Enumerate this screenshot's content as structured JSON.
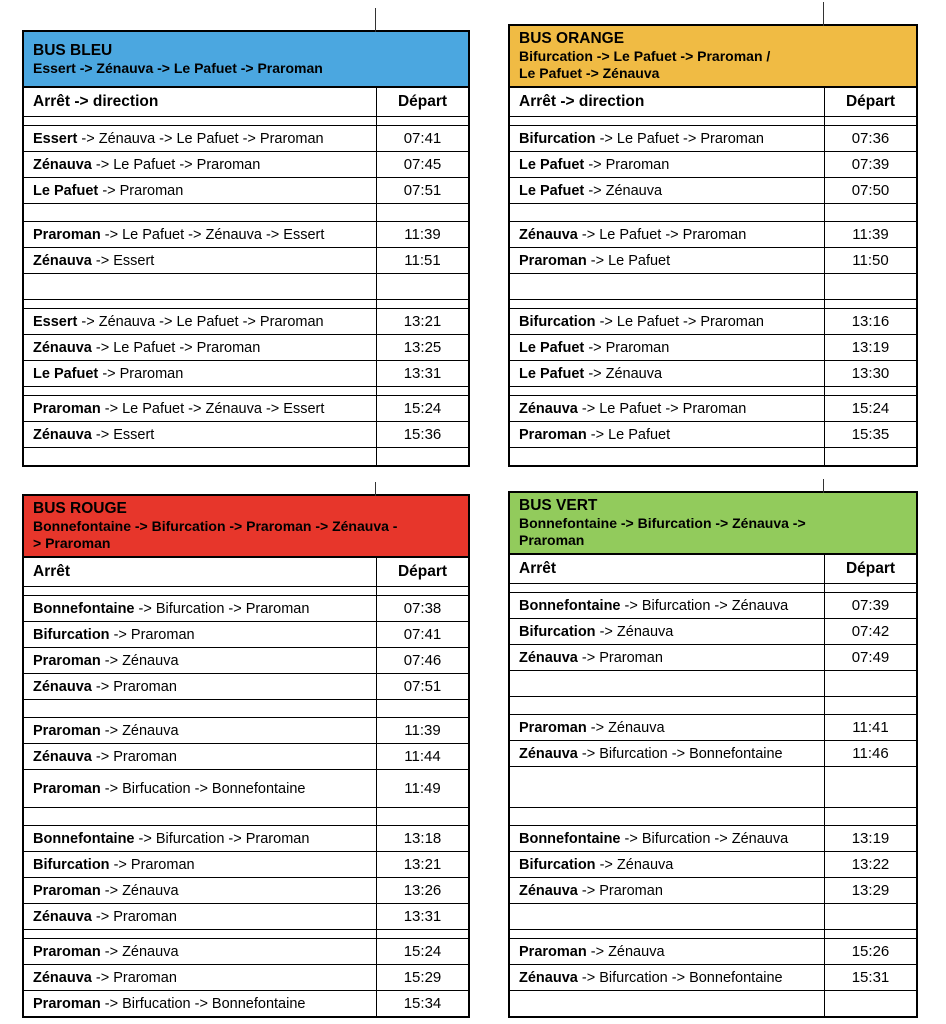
{
  "page": {
    "background": "#ffffff",
    "grid_line_color": "#333333"
  },
  "tables": [
    {
      "id": "bleu",
      "title": "BUS BLEU",
      "subtitle_lines": [
        "Essert -> Zénauva -> Le Pafuet -> Praroman"
      ],
      "header_color": "#4BA7E0",
      "col_stop": "Arrêt -> direction",
      "col_depart": "Départ",
      "rows": [
        {
          "type": "spacer",
          "size": "xs"
        },
        {
          "type": "route",
          "stop": "Essert",
          "rest": "-> Zénauva -> Le Pafuet -> Praroman",
          "time": "07:41"
        },
        {
          "type": "route",
          "stop": "Zénauva",
          "rest": "-> Le Pafuet -> Praroman",
          "time": "07:45"
        },
        {
          "type": "route",
          "stop": "Le Pafuet",
          "rest": "-> Praroman",
          "time": "07:51"
        },
        {
          "type": "spacer",
          "size": "sm"
        },
        {
          "type": "route",
          "stop": "Praroman",
          "rest": "-> Le Pafuet -> Zénauva -> Essert",
          "time": "11:39"
        },
        {
          "type": "route",
          "stop": "Zénauva",
          "rest": "-> Essert",
          "time": "11:51"
        },
        {
          "type": "spacer",
          "size": "md"
        },
        {
          "type": "spacer",
          "size": "xs"
        },
        {
          "type": "route",
          "stop": "Essert",
          "rest": "-> Zénauva -> Le Pafuet -> Praroman",
          "time": "13:21"
        },
        {
          "type": "route",
          "stop": "Zénauva",
          "rest": "-> Le Pafuet -> Praroman",
          "time": "13:25"
        },
        {
          "type": "route",
          "stop": "Le Pafuet",
          "rest": "-> Praroman",
          "time": "13:31"
        },
        {
          "type": "spacer",
          "size": "xs"
        },
        {
          "type": "route",
          "stop": "Praroman",
          "rest": "-> Le Pafuet -> Zénauva -> Essert",
          "time": "15:24"
        },
        {
          "type": "route",
          "stop": "Zénauva",
          "rest": "-> Essert",
          "time": "15:36"
        },
        {
          "type": "spacer",
          "size": "sm"
        }
      ]
    },
    {
      "id": "orange",
      "title": "BUS ORANGE",
      "subtitle_lines": [
        "Bifurcation -> Le Pafuet -> Praroman /",
        "Le Pafuet -> Zénauva"
      ],
      "header_color": "#F0BB44",
      "col_stop": "Arrêt -> direction",
      "col_depart": "Départ",
      "rows": [
        {
          "type": "spacer",
          "size": "xs"
        },
        {
          "type": "route",
          "stop": "Bifurcation",
          "rest": "-> Le Pafuet -> Praroman",
          "time": "07:36"
        },
        {
          "type": "route",
          "stop": "Le Pafuet",
          "rest": "-> Praroman",
          "time": "07:39"
        },
        {
          "type": "route",
          "stop": "Le Pafuet",
          "rest": "-> Zénauva",
          "time": "07:50"
        },
        {
          "type": "spacer",
          "size": "sm"
        },
        {
          "type": "route",
          "stop": "Zénauva",
          "rest": "-> Le Pafuet -> Praroman",
          "time": "11:39"
        },
        {
          "type": "route",
          "stop": "Praroman",
          "rest": "-> Le Pafuet",
          "time": "11:50"
        },
        {
          "type": "spacer",
          "size": "md"
        },
        {
          "type": "spacer",
          "size": "xs"
        },
        {
          "type": "route",
          "stop": "Bifurcation",
          "rest": "-> Le Pafuet -> Praroman",
          "time": "13:16"
        },
        {
          "type": "route",
          "stop": "Le Pafuet",
          "rest": "-> Praroman",
          "time": "13:19"
        },
        {
          "type": "route",
          "stop": "Le Pafuet",
          "rest": "-> Zénauva",
          "time": "13:30"
        },
        {
          "type": "spacer",
          "size": "xs"
        },
        {
          "type": "route",
          "stop": "Zénauva",
          "rest": "-> Le Pafuet -> Praroman",
          "time": "15:24"
        },
        {
          "type": "route",
          "stop": "Praroman",
          "rest": "-> Le Pafuet",
          "time": "15:35"
        },
        {
          "type": "spacer",
          "size": "sm"
        }
      ]
    },
    {
      "id": "rouge",
      "title": "BUS ROUGE",
      "subtitle_lines": [
        "Bonnefontaine -> Bifurcation -> Praroman -> Zénauva -",
        "> Praroman"
      ],
      "header_color": "#E7362B",
      "col_stop": "Arrêt",
      "col_depart": "Départ",
      "rows": [
        {
          "type": "spacer",
          "size": "xs"
        },
        {
          "type": "route",
          "stop": "Bonnefontaine",
          "rest": "-> Bifurcation -> Praroman",
          "time": "07:38"
        },
        {
          "type": "route",
          "stop": "Bifurcation",
          "rest": "-> Praroman",
          "time": "07:41"
        },
        {
          "type": "route",
          "stop": "Praroman",
          "rest": "-> Zénauva",
          "time": "07:46"
        },
        {
          "type": "route",
          "stop": "Zénauva",
          "rest": "-> Praroman",
          "time": "07:51"
        },
        {
          "type": "spacer",
          "size": "sm"
        },
        {
          "type": "route",
          "stop": "Praroman",
          "rest": "-> Zénauva",
          "time": "11:39"
        },
        {
          "type": "route",
          "stop": "Zénauva",
          "rest": "-> Praroman",
          "time": "11:44"
        },
        {
          "type": "route",
          "stop": "Praroman",
          "rest": "-> Birfucation -> Bonnefontaine",
          "time": "11:49",
          "size": "tall"
        },
        {
          "type": "spacer",
          "size": "sm"
        },
        {
          "type": "route",
          "stop": "Bonnefontaine",
          "rest": "-> Bifurcation -> Praroman",
          "time": "13:18"
        },
        {
          "type": "route",
          "stop": "Bifurcation",
          "rest": "-> Praroman",
          "time": "13:21"
        },
        {
          "type": "route",
          "stop": "Praroman",
          "rest": "-> Zénauva",
          "time": "13:26"
        },
        {
          "type": "route",
          "stop": "Zénauva",
          "rest": "-> Praroman",
          "time": "13:31"
        },
        {
          "type": "spacer",
          "size": "xs"
        },
        {
          "type": "route",
          "stop": "Praroman",
          "rest": "-> Zénauva",
          "time": "15:24"
        },
        {
          "type": "route",
          "stop": "Zénauva",
          "rest": "-> Praroman",
          "time": "15:29"
        },
        {
          "type": "route",
          "stop": "Praroman",
          "rest": "-> Birfucation -> Bonnefontaine",
          "time": "15:34"
        }
      ]
    },
    {
      "id": "vert",
      "title": "BUS VERT",
      "subtitle_lines": [
        "Bonnefontaine -> Bifurcation -> Zénauva ->",
        "Praroman"
      ],
      "header_color": "#92CB5C",
      "col_stop": "Arrêt",
      "col_depart": "Départ",
      "rows": [
        {
          "type": "spacer",
          "size": "xs"
        },
        {
          "type": "route",
          "stop": "Bonnefontaine",
          "rest": "-> Bifurcation -> Zénauva",
          "time": "07:39"
        },
        {
          "type": "route",
          "stop": "Bifurcation",
          "rest": "-> Zénauva",
          "time": "07:42"
        },
        {
          "type": "route",
          "stop": "Zénauva",
          "rest": "-> Praroman",
          "time": "07:49"
        },
        {
          "type": "spacer",
          "size": "md"
        },
        {
          "type": "spacer",
          "size": "sm"
        },
        {
          "type": "route",
          "stop": "Praroman",
          "rest": "-> Zénauva",
          "time": "11:41"
        },
        {
          "type": "route",
          "stop": "Zénauva",
          "rest": "-> Bifurcation -> Bonnefontaine",
          "time": "11:46"
        },
        {
          "type": "spacer",
          "size": "lg"
        },
        {
          "type": "spacer",
          "size": "sm"
        },
        {
          "type": "route",
          "stop": "Bonnefontaine",
          "rest": "-> Bifurcation -> Zénauva",
          "time": "13:19"
        },
        {
          "type": "route",
          "stop": "Bifurcation",
          "rest": "-> Zénauva",
          "time": "13:22"
        },
        {
          "type": "route",
          "stop": "Zénauva",
          "rest": "-> Praroman",
          "time": "13:29"
        },
        {
          "type": "spacer",
          "size": "md"
        },
        {
          "type": "spacer",
          "size": "xs"
        },
        {
          "type": "route",
          "stop": "Praroman",
          "rest": "-> Zénauva",
          "time": "15:26"
        },
        {
          "type": "route",
          "stop": "Zénauva",
          "rest": "-> Bifurcation -> Bonnefontaine",
          "time": "15:31"
        },
        {
          "type": "spacer",
          "size": "md"
        }
      ]
    }
  ]
}
